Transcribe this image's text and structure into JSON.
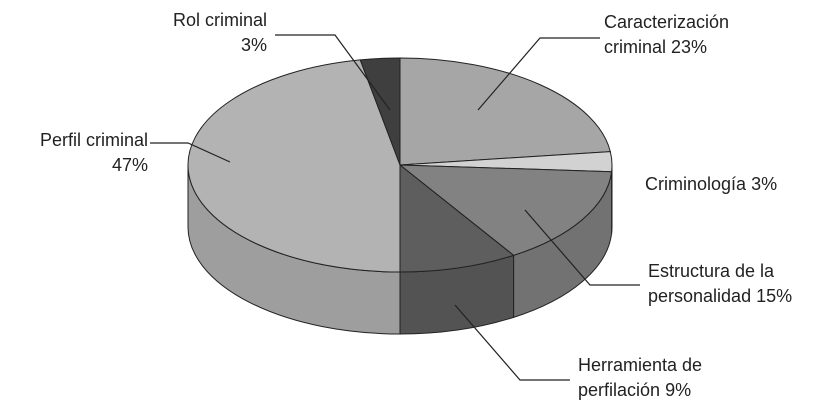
{
  "chart_data": {
    "type": "pie3d",
    "categories": [
      "Caracterización criminal",
      "Criminología",
      "Estructura de la personalidad",
      "Herramienta de perfilación",
      "Perfil criminal",
      "Rol criminal"
    ],
    "values": [
      23,
      3,
      15,
      9,
      47,
      3
    ],
    "value_labels": [
      "23%",
      "3%",
      "15%",
      "9%",
      "47%",
      "3%"
    ],
    "colors": [
      "#a6a6a6",
      "#d2d2d2",
      "#828282",
      "#5e5e5e",
      "#b3b3b3",
      "#3f3f3f"
    ]
  }
}
